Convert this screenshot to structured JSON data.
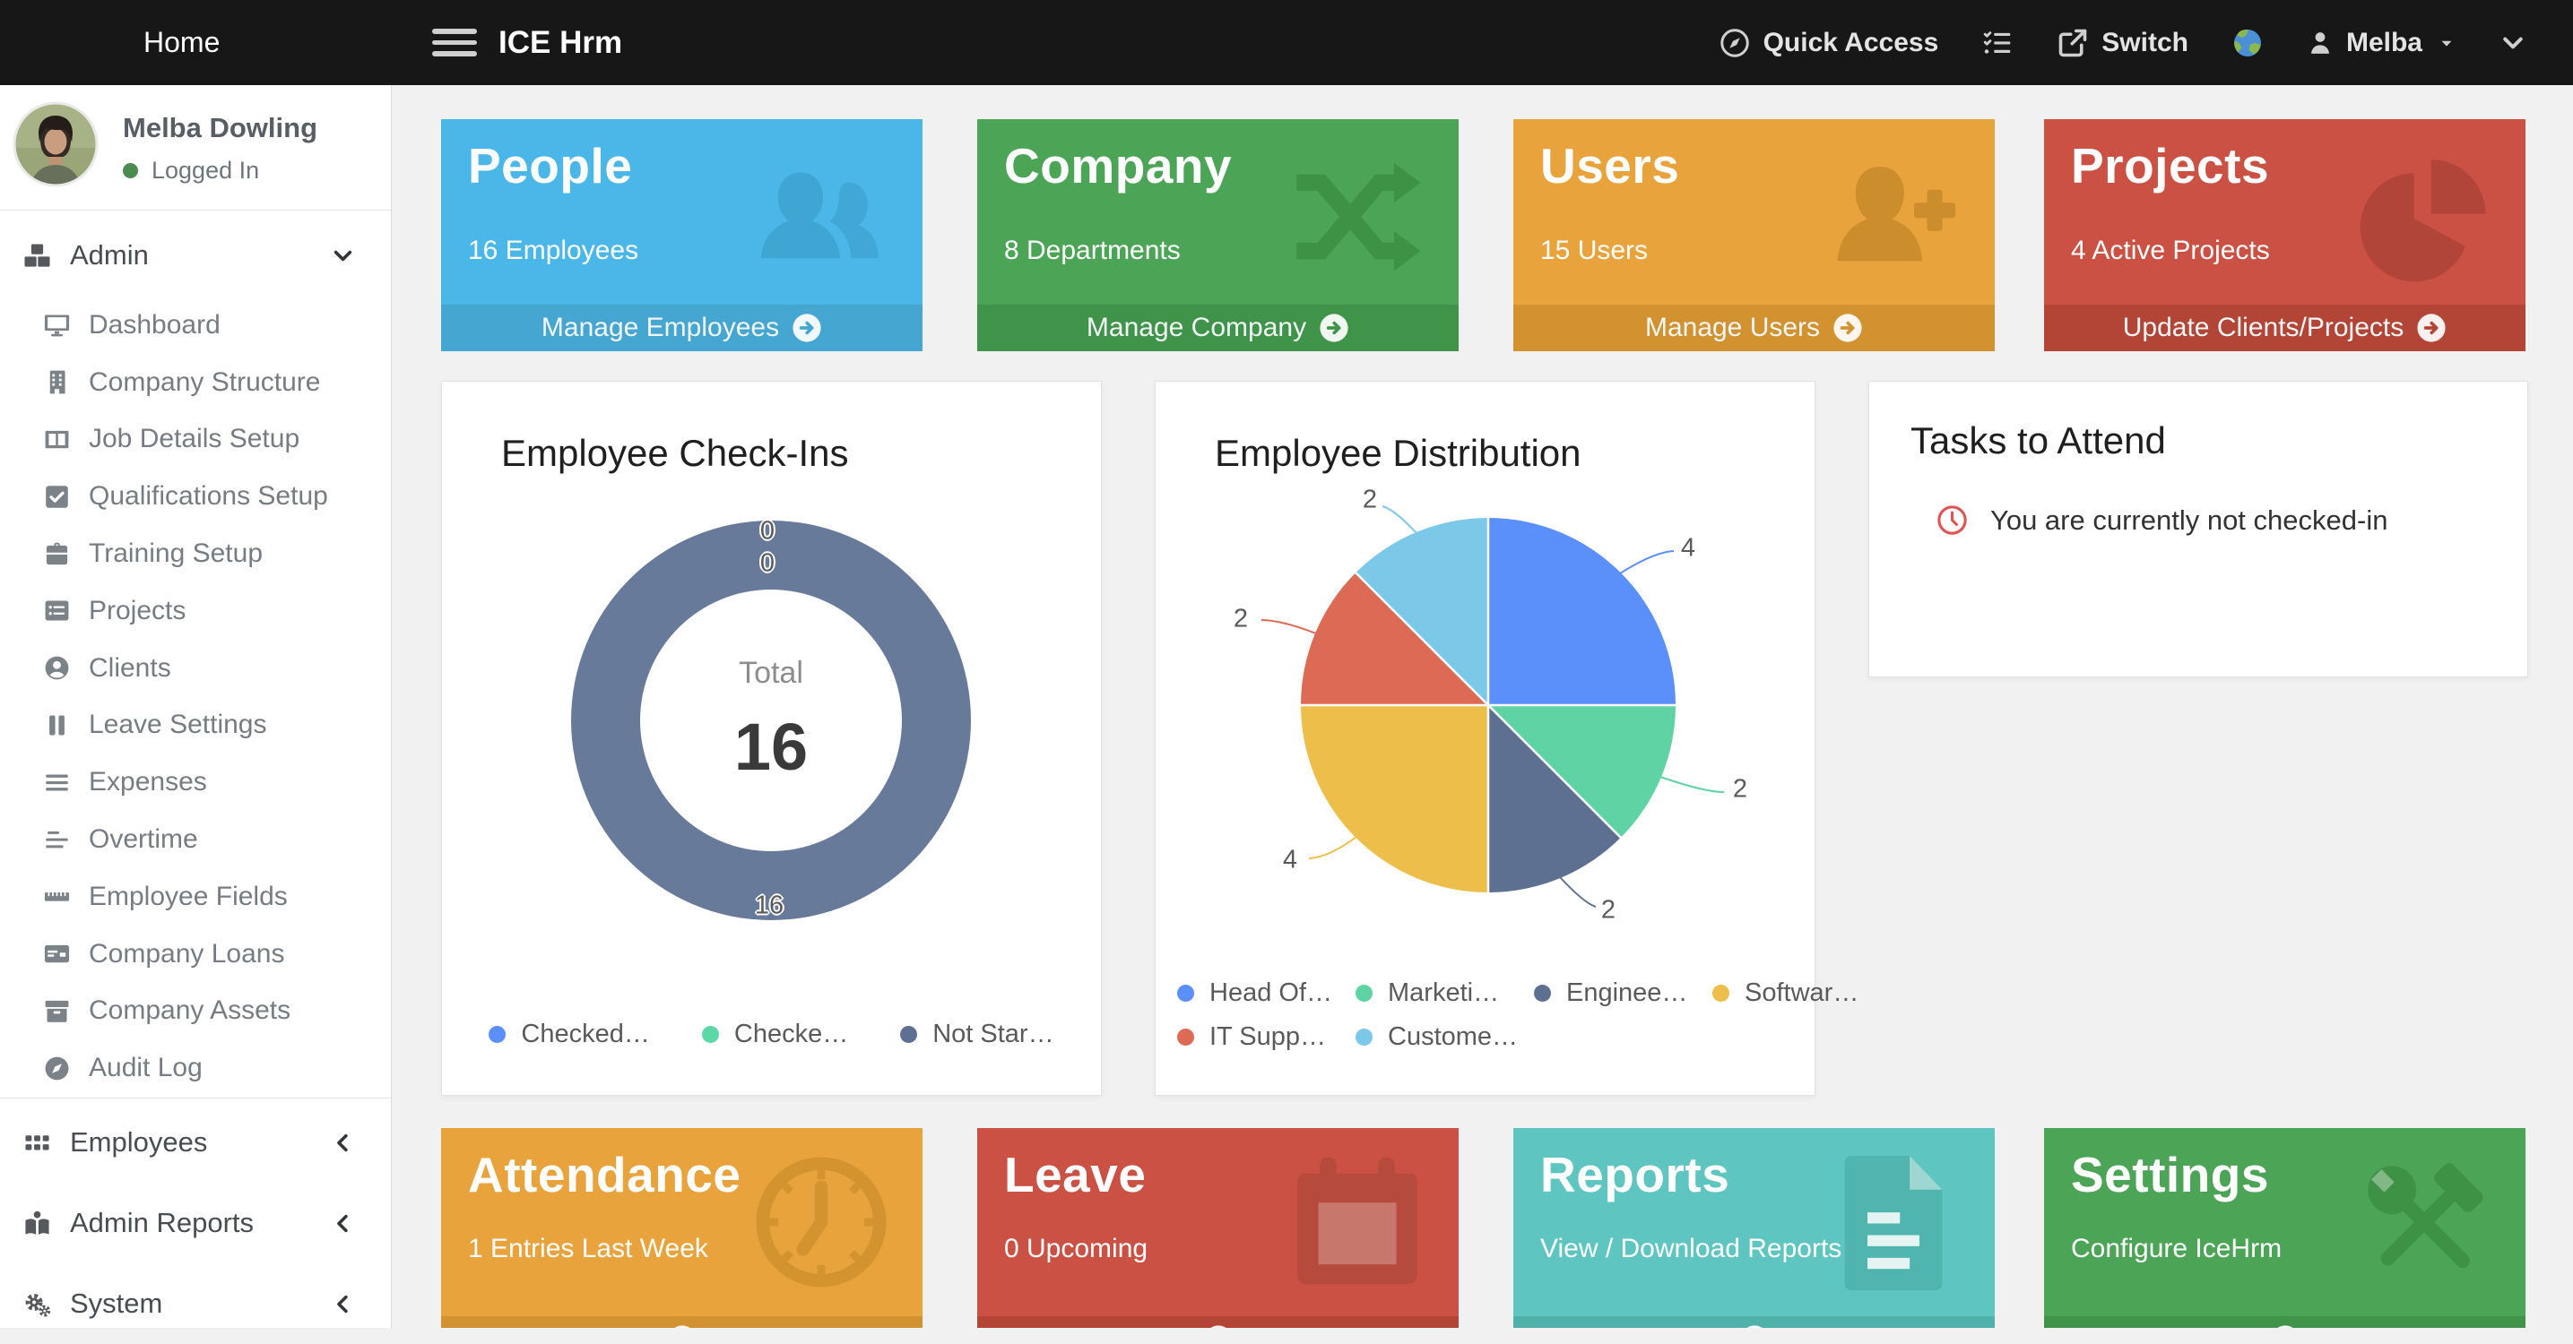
{
  "navbar": {
    "home": "Home",
    "brand": "ICE Hrm",
    "quick_access": "Quick Access",
    "switch_label": "Switch",
    "user": "Melba",
    "icons": {
      "quick_access": "compass-nav",
      "task_list": "list-check",
      "switch": "switch",
      "language": "globe",
      "user": "person"
    }
  },
  "sidebar": {
    "user": {
      "name": "Melba Dowling",
      "status": "Logged In",
      "status_color": "#4c8b52"
    },
    "admin_section": {
      "label": "Admin",
      "icon": "cubes"
    },
    "admin_items": [
      {
        "label": "Dashboard",
        "icon": "monitor"
      },
      {
        "label": "Company Structure",
        "icon": "building"
      },
      {
        "label": "Job Details Setup",
        "icon": "columns"
      },
      {
        "label": "Qualifications Setup",
        "icon": "check-square"
      },
      {
        "label": "Training Setup",
        "icon": "briefcase"
      },
      {
        "label": "Projects",
        "icon": "list"
      },
      {
        "label": "Clients",
        "icon": "user-circle"
      },
      {
        "label": "Leave Settings",
        "icon": "pause"
      },
      {
        "label": "Expenses",
        "icon": "bars"
      },
      {
        "label": "Overtime",
        "icon": "align-left"
      },
      {
        "label": "Employee Fields",
        "icon": "ruler"
      },
      {
        "label": "Company Loans",
        "icon": "credit-card"
      },
      {
        "label": "Company Assets",
        "icon": "archive"
      },
      {
        "label": "Audit Log",
        "icon": "compass"
      }
    ],
    "sections": [
      {
        "label": "Employees",
        "icon": "grid"
      },
      {
        "label": "Admin Reports",
        "icon": "book-reader"
      },
      {
        "label": "System",
        "icon": "gears"
      }
    ]
  },
  "cards": {
    "people": {
      "title": "People",
      "subtitle": "16 Employees",
      "action": "Manage Employees",
      "icon": "users",
      "color": "#4bb7e8",
      "footer_color": "#45a6d2",
      "icon_color": "#3fa5d3"
    },
    "company": {
      "title": "Company",
      "subtitle": "8 Departments",
      "action": "Manage Company",
      "icon": "shuffle",
      "color": "#4ca556",
      "footer_color": "#3f9449",
      "icon_color": "#3e9246"
    },
    "users": {
      "title": "Users",
      "subtitle": "15 Users",
      "action": "Manage Users",
      "icon": "user-plus",
      "color": "#e8a33c",
      "footer_color": "#d29230",
      "icon_color": "#cc8d2c"
    },
    "projects": {
      "title": "Projects",
      "subtitle": "4 Active Projects",
      "action": "Update Clients/Projects",
      "icon": "pie",
      "color": "#ca5144",
      "footer_color": "#b34537",
      "icon_color": "#b2453a"
    },
    "attendance": {
      "title": "Attendance",
      "subtitle": "1 Entries Last Week",
      "icon": "clock-big",
      "color": "#e8a33c",
      "footer_color": "#d29230",
      "icon_color": "#d3942f"
    },
    "leave": {
      "title": "Leave",
      "subtitle": "0 Upcoming",
      "icon": "calendar",
      "color": "#ca5144",
      "footer_color": "#b34537",
      "icon_color": "#b64a3d"
    },
    "reports": {
      "title": "Reports",
      "subtitle": "View / Download Reports",
      "icon": "file-lines",
      "color": "#5ec5c0",
      "footer_color": "#50b1ab",
      "icon_color": "#4fb5ae"
    },
    "settings": {
      "title": "Settings",
      "subtitle": "Configure IceHrm",
      "icon": "tools",
      "color": "#4ca556",
      "footer_color": "#3f9449",
      "icon_color": "#3e9246"
    }
  },
  "panels": {
    "checkins": {
      "title": "Employee Check-Ins"
    },
    "distribution": {
      "title": "Employee Distribution"
    },
    "tasks": {
      "title": "Tasks to Attend",
      "message": "You are currently not checked-in",
      "icon": "clock"
    }
  },
  "chart_data": [
    {
      "type": "donut",
      "title": "Employee Check-Ins",
      "categories": [
        "Checked…",
        "Checke…",
        "Not Star…"
      ],
      "values": [
        0,
        0,
        16
      ],
      "colors": [
        "#5b8ff9",
        "#5bd8a6",
        "#5d7092"
      ],
      "center_label": "Total",
      "total": 16,
      "legend_position": "bottom"
    },
    {
      "type": "pie",
      "title": "Employee Distribution",
      "categories": [
        "Head Of…",
        "Marketi…",
        "Enginee…",
        "Softwar…",
        "IT Supp…",
        "Custome…"
      ],
      "values": [
        4,
        2,
        2,
        4,
        2,
        2
      ],
      "colors": [
        "#5b8ff9",
        "#60d3a4",
        "#5d7092",
        "#edbf4a",
        "#dd6a55",
        "#7cc8e8"
      ],
      "start_angle": "12-oclock",
      "direction": "clockwise",
      "legend_position": "bottom"
    }
  ],
  "ui": {
    "footer_arrow_icon": "circle-arrow",
    "chevron_down": "chevron-down",
    "chevron_left": "chevron-left",
    "caret_down": "caret-down"
  }
}
